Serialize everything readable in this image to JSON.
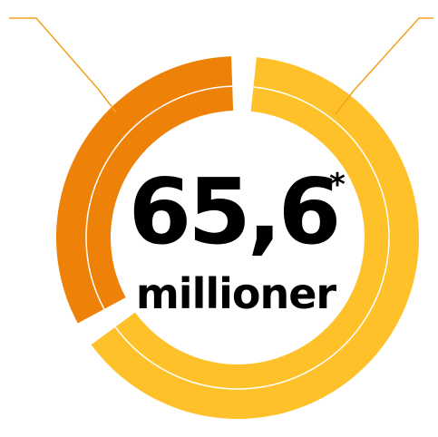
{
  "chart_data": {
    "type": "pie",
    "center_value": "65,6",
    "center_marker": "*",
    "center_unit": "millioner",
    "slices": [
      {
        "share": 0.345,
        "color": "#ee8208"
      },
      {
        "share": 0.655,
        "color": "#fec129"
      }
    ],
    "label_line_color": "#f0a020"
  }
}
